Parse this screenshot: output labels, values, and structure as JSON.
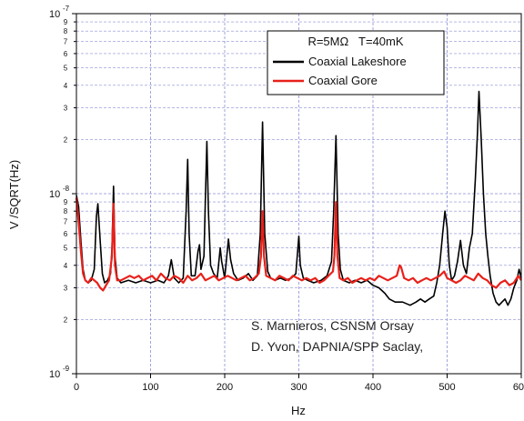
{
  "chart_data": {
    "type": "line",
    "xlabel": "Hz",
    "ylabel": "V /SQRT(Hz)",
    "xlim": [
      0,
      600
    ],
    "ylim": [
      1e-09,
      1e-07
    ],
    "yscale": "log",
    "grid": true,
    "x_ticks": [
      0,
      100,
      200,
      300,
      400,
      500,
      600
    ],
    "x_tick_labels": [
      "0",
      "100",
      "200",
      "300",
      "400",
      "500",
      "600"
    ],
    "y_decade_labels": [
      {
        "base": "10",
        "exp": "-9"
      },
      {
        "base": "10",
        "exp": "-8"
      },
      {
        "base": "10",
        "exp": "-7"
      }
    ],
    "y_minor_labels": [
      "2",
      "3",
      "4",
      "5",
      "6",
      "7",
      "8",
      "9"
    ],
    "legend": {
      "header": "R=5MΩ   T=40mK",
      "placement": "top-right"
    },
    "annotations": [
      "S. Marnieros, CSNSM Orsay",
      "D. Yvon, DAPNIA/SPP Saclay,"
    ],
    "series": [
      {
        "name": "Coaxial Lakeshore",
        "color": "#000000",
        "points": [
          [
            0,
            9.8e-09
          ],
          [
            3,
            8.5e-09
          ],
          [
            6,
            5.5e-09
          ],
          [
            9,
            3.8e-09
          ],
          [
            12,
            3.3e-09
          ],
          [
            16,
            3.2e-09
          ],
          [
            20,
            3.3e-09
          ],
          [
            24,
            3.8e-09
          ],
          [
            27,
            7.5e-09
          ],
          [
            29,
            8.8e-09
          ],
          [
            32,
            5.5e-09
          ],
          [
            35,
            3.6e-09
          ],
          [
            38,
            3.2e-09
          ],
          [
            42,
            3.3e-09
          ],
          [
            46,
            3.6e-09
          ],
          [
            48,
            5e-09
          ],
          [
            50,
            1.1e-08
          ],
          [
            52,
            4.5e-09
          ],
          [
            55,
            3.4e-09
          ],
          [
            60,
            3.2e-09
          ],
          [
            70,
            3.3e-09
          ],
          [
            80,
            3.2e-09
          ],
          [
            90,
            3.3e-09
          ],
          [
            100,
            3.2e-09
          ],
          [
            110,
            3.3e-09
          ],
          [
            118,
            3.2e-09
          ],
          [
            124,
            3.5e-09
          ],
          [
            128,
            4.3e-09
          ],
          [
            132,
            3.4e-09
          ],
          [
            138,
            3.2e-09
          ],
          [
            144,
            3.4e-09
          ],
          [
            148,
            8e-09
          ],
          [
            150,
            1.55e-08
          ],
          [
            152,
            6e-09
          ],
          [
            155,
            3.5e-09
          ],
          [
            160,
            3.5e-09
          ],
          [
            164,
            4.8e-09
          ],
          [
            166,
            5.2e-09
          ],
          [
            168,
            3.8e-09
          ],
          [
            172,
            4.5e-09
          ],
          [
            174,
            9.5e-09
          ],
          [
            176,
            1.95e-08
          ],
          [
            178,
            8e-09
          ],
          [
            181,
            4e-09
          ],
          [
            185,
            3.6e-09
          ],
          [
            190,
            3.4e-09
          ],
          [
            194,
            5e-09
          ],
          [
            196,
            4.2e-09
          ],
          [
            200,
            3.4e-09
          ],
          [
            205,
            5.6e-09
          ],
          [
            208,
            4.3e-09
          ],
          [
            212,
            3.6e-09
          ],
          [
            218,
            3.3e-09
          ],
          [
            225,
            3.4e-09
          ],
          [
            232,
            3.6e-09
          ],
          [
            238,
            3.3e-09
          ],
          [
            244,
            3.5e-09
          ],
          [
            248,
            6e-09
          ],
          [
            251,
            2.5e-08
          ],
          [
            254,
            6e-09
          ],
          [
            258,
            3.7e-09
          ],
          [
            262,
            3.4e-09
          ],
          [
            268,
            3.3e-09
          ],
          [
            275,
            3.4e-09
          ],
          [
            282,
            3.3e-09
          ],
          [
            290,
            3.4e-09
          ],
          [
            296,
            3.6e-09
          ],
          [
            300,
            5.8e-09
          ],
          [
            302,
            4e-09
          ],
          [
            306,
            3.4e-09
          ],
          [
            312,
            3.3e-09
          ],
          [
            320,
            3.2e-09
          ],
          [
            330,
            3.3e-09
          ],
          [
            338,
            3.5e-09
          ],
          [
            344,
            4.2e-09
          ],
          [
            347,
            8e-09
          ],
          [
            350,
            2.1e-08
          ],
          [
            353,
            6e-09
          ],
          [
            356,
            3.8e-09
          ],
          [
            360,
            3.3e-09
          ],
          [
            368,
            3.2e-09
          ],
          [
            376,
            3.3e-09
          ],
          [
            384,
            3.2e-09
          ],
          [
            392,
            3.3e-09
          ],
          [
            400,
            3.1e-09
          ],
          [
            408,
            3e-09
          ],
          [
            416,
            2.8e-09
          ],
          [
            422,
            2.6e-09
          ],
          [
            430,
            2.5e-09
          ],
          [
            440,
            2.5e-09
          ],
          [
            450,
            2.4e-09
          ],
          [
            458,
            2.5e-09
          ],
          [
            464,
            2.6e-09
          ],
          [
            470,
            2.5e-09
          ],
          [
            476,
            2.6e-09
          ],
          [
            482,
            2.7e-09
          ],
          [
            486,
            3.2e-09
          ],
          [
            490,
            4e-09
          ],
          [
            494,
            6e-09
          ],
          [
            497,
            8e-09
          ],
          [
            500,
            6.5e-09
          ],
          [
            503,
            4e-09
          ],
          [
            506,
            3.3e-09
          ],
          [
            510,
            3.5e-09
          ],
          [
            514,
            4.2e-09
          ],
          [
            518,
            5.5e-09
          ],
          [
            522,
            4e-09
          ],
          [
            526,
            3.6e-09
          ],
          [
            530,
            5e-09
          ],
          [
            534,
            6e-09
          ],
          [
            538,
            1.2e-08
          ],
          [
            541,
            2.2e-08
          ],
          [
            543,
            3.7e-08
          ],
          [
            546,
            2e-08
          ],
          [
            549,
            1e-08
          ],
          [
            552,
            6e-09
          ],
          [
            555,
            4.5e-09
          ],
          [
            558,
            3.5e-09
          ],
          [
            562,
            2.8e-09
          ],
          [
            566,
            2.5e-09
          ],
          [
            570,
            2.4e-09
          ],
          [
            574,
            2.5e-09
          ],
          [
            578,
            2.6e-09
          ],
          [
            582,
            2.4e-09
          ],
          [
            586,
            2.6e-09
          ],
          [
            590,
            3e-09
          ],
          [
            594,
            3.3e-09
          ],
          [
            597,
            3.8e-09
          ],
          [
            600,
            3.4e-09
          ]
        ]
      },
      {
        "name": "Coaxial Gore",
        "color": "#e8201a",
        "points": [
          [
            0,
            9.5e-09
          ],
          [
            3,
            7e-09
          ],
          [
            6,
            4.8e-09
          ],
          [
            9,
            3.6e-09
          ],
          [
            12,
            3.3e-09
          ],
          [
            16,
            3.2e-09
          ],
          [
            20,
            3.4e-09
          ],
          [
            24,
            3.3e-09
          ],
          [
            28,
            3.2e-09
          ],
          [
            32,
            3e-09
          ],
          [
            36,
            2.9e-09
          ],
          [
            40,
            3.1e-09
          ],
          [
            44,
            3.3e-09
          ],
          [
            48,
            4.5e-09
          ],
          [
            50,
            8.8e-09
          ],
          [
            52,
            4e-09
          ],
          [
            55,
            3.3e-09
          ],
          [
            60,
            3.3e-09
          ],
          [
            66,
            3.4e-09
          ],
          [
            72,
            3.5e-09
          ],
          [
            78,
            3.4e-09
          ],
          [
            84,
            3.5e-09
          ],
          [
            90,
            3.3e-09
          ],
          [
            96,
            3.4e-09
          ],
          [
            102,
            3.5e-09
          ],
          [
            108,
            3.3e-09
          ],
          [
            114,
            3.6e-09
          ],
          [
            120,
            3.4e-09
          ],
          [
            126,
            3.3e-09
          ],
          [
            132,
            3.5e-09
          ],
          [
            138,
            3.4e-09
          ],
          [
            144,
            3.2e-09
          ],
          [
            150,
            3.5e-09
          ],
          [
            156,
            3.3e-09
          ],
          [
            162,
            3.4e-09
          ],
          [
            168,
            3.6e-09
          ],
          [
            174,
            3.3e-09
          ],
          [
            180,
            3.4e-09
          ],
          [
            186,
            3.5e-09
          ],
          [
            192,
            3.3e-09
          ],
          [
            198,
            3.4e-09
          ],
          [
            204,
            3.5e-09
          ],
          [
            210,
            3.4e-09
          ],
          [
            216,
            3.3e-09
          ],
          [
            222,
            3.4e-09
          ],
          [
            228,
            3.5e-09
          ],
          [
            234,
            3.3e-09
          ],
          [
            240,
            3.4e-09
          ],
          [
            246,
            3.6e-09
          ],
          [
            249,
            4.5e-09
          ],
          [
            251,
            8e-09
          ],
          [
            253,
            4.5e-09
          ],
          [
            256,
            3.5e-09
          ],
          [
            262,
            3.4e-09
          ],
          [
            268,
            3.3e-09
          ],
          [
            274,
            3.5e-09
          ],
          [
            280,
            3.4e-09
          ],
          [
            286,
            3.3e-09
          ],
          [
            292,
            3.5e-09
          ],
          [
            298,
            3.4e-09
          ],
          [
            304,
            3.3e-09
          ],
          [
            310,
            3.4e-09
          ],
          [
            316,
            3.3e-09
          ],
          [
            322,
            3.4e-09
          ],
          [
            328,
            3.2e-09
          ],
          [
            334,
            3.3e-09
          ],
          [
            340,
            3.5e-09
          ],
          [
            346,
            3.7e-09
          ],
          [
            348,
            4.5e-09
          ],
          [
            350,
            9e-09
          ],
          [
            352,
            4.5e-09
          ],
          [
            355,
            3.4e-09
          ],
          [
            360,
            3.3e-09
          ],
          [
            366,
            3.4e-09
          ],
          [
            372,
            3.2e-09
          ],
          [
            378,
            3.3e-09
          ],
          [
            384,
            3.4e-09
          ],
          [
            390,
            3.3e-09
          ],
          [
            396,
            3.4e-09
          ],
          [
            402,
            3.3e-09
          ],
          [
            408,
            3.5e-09
          ],
          [
            414,
            3.4e-09
          ],
          [
            420,
            3.3e-09
          ],
          [
            426,
            3.4e-09
          ],
          [
            432,
            3.5e-09
          ],
          [
            436,
            4e-09
          ],
          [
            438,
            3.9e-09
          ],
          [
            442,
            3.4e-09
          ],
          [
            448,
            3.3e-09
          ],
          [
            454,
            3.4e-09
          ],
          [
            460,
            3.2e-09
          ],
          [
            466,
            3.3e-09
          ],
          [
            472,
            3.4e-09
          ],
          [
            478,
            3.3e-09
          ],
          [
            484,
            3.4e-09
          ],
          [
            490,
            3.5e-09
          ],
          [
            496,
            3.7e-09
          ],
          [
            500,
            3.4e-09
          ],
          [
            506,
            3.3e-09
          ],
          [
            512,
            3.2e-09
          ],
          [
            518,
            3.3e-09
          ],
          [
            524,
            3.5e-09
          ],
          [
            530,
            3.4e-09
          ],
          [
            536,
            3.3e-09
          ],
          [
            542,
            3.6e-09
          ],
          [
            548,
            3.4e-09
          ],
          [
            554,
            3.3e-09
          ],
          [
            560,
            3.1e-09
          ],
          [
            566,
            3e-09
          ],
          [
            572,
            3.2e-09
          ],
          [
            578,
            3.3e-09
          ],
          [
            584,
            3.1e-09
          ],
          [
            590,
            3.2e-09
          ],
          [
            596,
            3.5e-09
          ],
          [
            600,
            3.3e-09
          ]
        ]
      }
    ]
  }
}
